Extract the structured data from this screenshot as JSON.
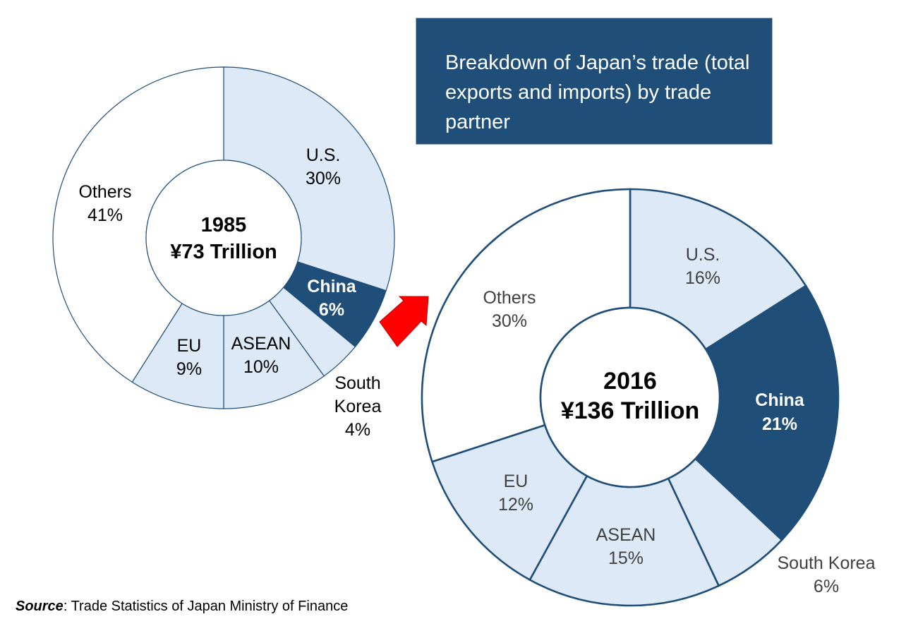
{
  "title": "Breakdown of Japan’s trade (total exports and imports) by trade partner",
  "source": {
    "label": "Source",
    "separator": ":",
    "text": " Trade Statistics of Japan Ministry of Finance"
  },
  "colors": {
    "navy": "#1f4e79",
    "light": "#dde9f6",
    "white": "#ffffff",
    "arrow": "#ff0000"
  },
  "chart_data": [
    {
      "type": "pie",
      "center_year": "1985",
      "center_total": "¥73 Trillion",
      "slices": [
        {
          "label": "U.S.",
          "value": 30,
          "value_text": "30%"
        },
        {
          "label": "China",
          "value": 6,
          "value_text": "6%"
        },
        {
          "label": "South Korea",
          "value": 4,
          "value_text": "4%"
        },
        {
          "label": "ASEAN",
          "value": 10,
          "value_text": "10%"
        },
        {
          "label": "EU",
          "value": 9,
          "value_text": "9%"
        },
        {
          "label": "Others",
          "value": 41,
          "value_text": "41%"
        }
      ]
    },
    {
      "type": "pie",
      "center_year": "2016",
      "center_total": "¥136 Trillion",
      "slices": [
        {
          "label": "U.S.",
          "value": 16,
          "value_text": "16%"
        },
        {
          "label": "China",
          "value": 21,
          "value_text": "21%"
        },
        {
          "label": "South Korea",
          "value": 6,
          "value_text": "6%"
        },
        {
          "label": "ASEAN",
          "value": 15,
          "value_text": "15%"
        },
        {
          "label": "EU",
          "value": 12,
          "value_text": "12%"
        },
        {
          "label": "Others",
          "value": 30,
          "value_text": "30%"
        }
      ]
    }
  ]
}
